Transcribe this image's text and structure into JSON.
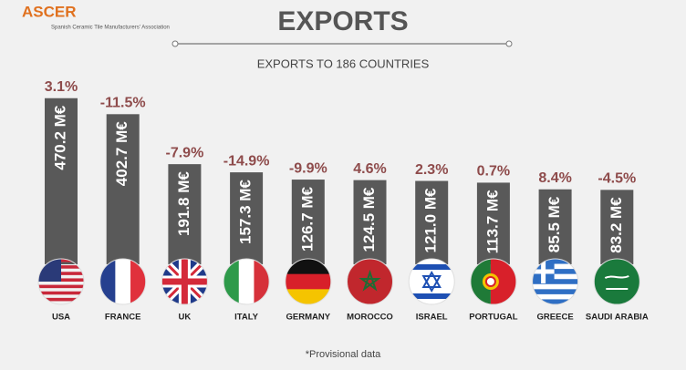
{
  "header": {
    "logo": "ASCER",
    "logo_subtitle": "Spanish Ceramic Tile Manufacturers' Association"
  },
  "chart_data": {
    "type": "bar",
    "title": "EXPORTS",
    "subtitle": "EXPORTS TO 186 COUNTRIES",
    "categories": [
      "USA",
      "FRANCE",
      "UK",
      "ITALY",
      "GERMANY",
      "MOROCCO",
      "ISRAEL",
      "PORTUGAL",
      "GREECE",
      "SAUDI ARABIA"
    ],
    "values": [
      470.2,
      402.7,
      191.8,
      157.3,
      126.7,
      124.5,
      121.0,
      113.7,
      85.5,
      83.2
    ],
    "value_labels": [
      "470.2 M€",
      "402.7 M€",
      "191.8 M€",
      "157.3 M€",
      "126.7 M€",
      "124.5 M€",
      "121.0 M€",
      "113.7 M€",
      "85.5 M€",
      "83.2 M€"
    ],
    "changes": [
      3.1,
      -11.5,
      -7.9,
      -14.9,
      -9.9,
      4.6,
      2.3,
      0.7,
      8.4,
      -4.5
    ],
    "change_labels": [
      "3.1%",
      "-11.5%",
      "-7.9%",
      "-14.9%",
      "-9.9%",
      "4.6%",
      "2.3%",
      "0.7%",
      "8.4%",
      "-4.5%"
    ],
    "color": "#595959",
    "change_color": "#8e4b4b",
    "note": "*Provisional data"
  }
}
